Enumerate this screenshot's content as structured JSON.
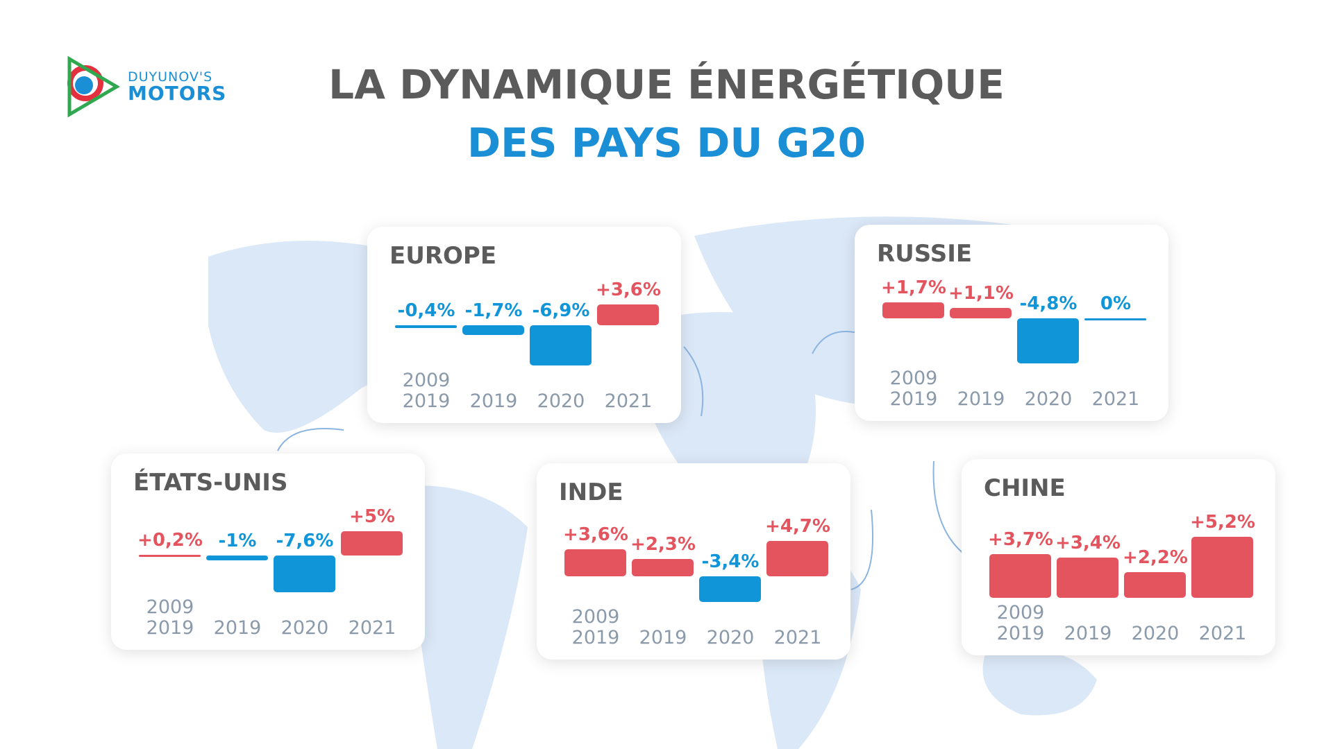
{
  "logo": {
    "line1": "DUYUNOV'S",
    "line2": "MOTORS"
  },
  "title": "LA DYNAMIQUE ÉNERGÉTIQUE",
  "subtitle": "DES PAYS DU G20",
  "chart_data": [
    {
      "type": "bar",
      "title": "EUROPE",
      "categories": [
        "2009\n2019",
        "2019",
        "2020",
        "2021"
      ],
      "values": [
        -0.4,
        -1.7,
        -6.9,
        3.6
      ],
      "value_labels": [
        "-0,4%",
        "-1,7%",
        "-6,9%",
        "+3,6%"
      ],
      "positive_color": "#e3545f",
      "negative_color": "#0f95d8"
    },
    {
      "type": "bar",
      "title": "RUSSIE",
      "categories": [
        "2009\n2019",
        "2019",
        "2020",
        "2021"
      ],
      "values": [
        1.7,
        1.1,
        -4.8,
        0
      ],
      "value_labels": [
        "+1,7%",
        "+1,1%",
        "-4,8%",
        "0%"
      ],
      "positive_color": "#e3545f",
      "negative_color": "#0f95d8"
    },
    {
      "type": "bar",
      "title": "ÉTATS-UNIS",
      "categories": [
        "2009\n2019",
        "2019",
        "2020",
        "2021"
      ],
      "values": [
        0.2,
        -1,
        -7.6,
        5
      ],
      "value_labels": [
        "+0,2%",
        "-1%",
        "-7,6%",
        "+5%"
      ],
      "positive_color": "#e3545f",
      "negative_color": "#0f95d8"
    },
    {
      "type": "bar",
      "title": "INDE",
      "categories": [
        "2009\n2019",
        "2019",
        "2020",
        "2021"
      ],
      "values": [
        3.6,
        2.3,
        -3.4,
        4.7
      ],
      "value_labels": [
        "+3,6%",
        "+2,3%",
        "-3,4%",
        "+4,7%"
      ],
      "positive_color": "#e3545f",
      "negative_color": "#0f95d8"
    },
    {
      "type": "bar",
      "title": "CHINE",
      "categories": [
        "2009\n2019",
        "2019",
        "2020",
        "2021"
      ],
      "values": [
        3.7,
        3.4,
        2.2,
        5.2
      ],
      "value_labels": [
        "+3,7%",
        "+3,4%",
        "+2,2%",
        "+5,2%"
      ],
      "positive_color": "#e3545f",
      "negative_color": "#0f95d8"
    }
  ]
}
